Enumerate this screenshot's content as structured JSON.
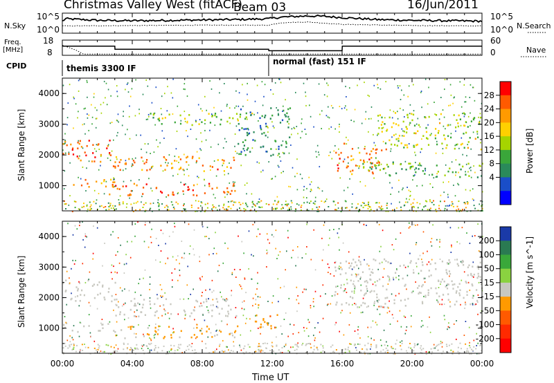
{
  "header": {
    "title": "Christmas Valley West (fitACF)",
    "beam": "Beam 03",
    "date": "16/Jun/2011"
  },
  "noise_panel": {
    "left_label": "N.Sky",
    "right_label": "N.Search",
    "ticks_left": [
      "10^5",
      "10^0"
    ],
    "ticks_right": [
      "10^5",
      "10^0"
    ]
  },
  "freq_panel": {
    "left_label_1": "Freq.",
    "left_label_2": "[MHz]",
    "right_label": "Nave",
    "ticks_left": [
      "18",
      "8"
    ],
    "ticks_right": [
      "60",
      "0"
    ]
  },
  "cpid": {
    "label": "CPID",
    "segments": [
      {
        "name": "themis 3300 IF",
        "start_hour": 0,
        "end_hour": 11.8
      },
      {
        "name": "normal (fast) 151 IF",
        "start_hour": 11.8,
        "end_hour": 24
      }
    ]
  },
  "power_panel": {
    "ylabel": "Slant Range [km]",
    "cbar_label": "Power [dB]",
    "cbar_ticks": [
      "28",
      "24",
      "20",
      "16",
      "12",
      "8",
      "4"
    ],
    "cbar_colors": [
      "#ff0000",
      "#ff5a00",
      "#ff9a00",
      "#ffd000",
      "#a6d400",
      "#3aa63a",
      "#2a8a5a",
      "#1a4ec8",
      "#0000ff"
    ]
  },
  "velocity_panel": {
    "ylabel": "Slant Range [km]",
    "cbar_label": "Velocity [m s^-1]",
    "cbar_ticks": [
      "200",
      "100",
      "50",
      "15",
      "-15",
      "-50",
      "-100",
      "-200"
    ],
    "cbar_colors": [
      "#1a3aa8",
      "#2a7a52",
      "#3aa83a",
      "#8ad240",
      "#c8c8c0",
      "#ff9a00",
      "#ff5a00",
      "#ff2a00",
      "#ff0000"
    ]
  },
  "x_axis": {
    "label": "Time UT",
    "ticks": [
      "00:00",
      "04:00",
      "08:00",
      "12:00",
      "16:00",
      "20:00",
      "00:00"
    ]
  },
  "y_axis": {
    "ticks": [
      "1000",
      "2000",
      "3000",
      "4000"
    ]
  },
  "chart_data": [
    {
      "type": "line",
      "title": "Noise",
      "series": [
        {
          "name": "N.Sky",
          "x": [
            0,
            0.2,
            2,
            4,
            6,
            8,
            10,
            11.8,
            12.5,
            14,
            15,
            16,
            18,
            20,
            22,
            24
          ],
          "y_log10": [
            3.0,
            3.6,
            3.2,
            3.1,
            3.2,
            3.3,
            3.4,
            3.6,
            4.0,
            4.3,
            4.2,
            3.9,
            3.4,
            3.2,
            3.1,
            3.0
          ]
        },
        {
          "name": "N.Search",
          "x": [
            0,
            4,
            8,
            11.8,
            12.5,
            14,
            16,
            20,
            24
          ],
          "y_log10": [
            1.8,
            1.9,
            2.0,
            2.0,
            2.6,
            2.8,
            2.2,
            1.9,
            1.8
          ]
        }
      ],
      "ylim": [
        "10^0",
        "10^5"
      ],
      "xlim": [
        0,
        24
      ]
    },
    {
      "type": "line",
      "title": "Frequency and Nave",
      "series": [
        {
          "name": "Freq. [MHz]",
          "x": [
            0,
            3,
            3.01,
            11.8,
            11.81,
            16,
            16.01,
            24
          ],
          "y": [
            14,
            14,
            12,
            12,
            11,
            11,
            14,
            14
          ]
        },
        {
          "name": "Nave",
          "x": [
            0,
            0.8,
            1.2,
            2,
            24
          ],
          "y": [
            40,
            20,
            5,
            5,
            5
          ]
        }
      ],
      "xlim": [
        0,
        24
      ]
    },
    {
      "type": "heatmap",
      "title": "Power [dB]",
      "xlabel": "Time UT",
      "ylabel": "Slant Range [km]",
      "xlim": [
        0,
        24
      ],
      "ylim": [
        180,
        4500
      ],
      "zlim": [
        0,
        30
      ],
      "features": [
        {
          "t0": 0,
          "t1": 3,
          "r0": 1800,
          "r1": 2500,
          "power": 26
        },
        {
          "t0": 0,
          "t1": 3,
          "r0": 950,
          "r1": 1250,
          "power": 22
        },
        {
          "t0": 2.8,
          "t1": 10,
          "r0": 1500,
          "r1": 2000,
          "power": 24
        },
        {
          "t0": 2.5,
          "t1": 10,
          "r0": 700,
          "r1": 1100,
          "power": 26
        },
        {
          "t0": 5,
          "t1": 11,
          "r0": 3000,
          "r1": 3400,
          "power": 14
        },
        {
          "t0": 10,
          "t1": 13,
          "r0": 2000,
          "r1": 3600,
          "power": 8
        },
        {
          "t0": 15.5,
          "t1": 18.5,
          "r0": 1400,
          "r1": 2400,
          "power": 24
        },
        {
          "t0": 18,
          "t1": 24,
          "r0": 2200,
          "r1": 3400,
          "power": 16
        },
        {
          "t0": 17,
          "t1": 24,
          "r0": 1300,
          "r1": 1800,
          "power": 12
        }
      ]
    },
    {
      "type": "heatmap",
      "title": "Velocity [m s^-1]",
      "xlabel": "Time UT",
      "ylabel": "Slant Range [km]",
      "xlim": [
        0,
        24
      ],
      "ylim": [
        180,
        4500
      ],
      "zlim": [
        -200,
        200
      ],
      "features": [
        {
          "t0": 0,
          "t1": 3,
          "r0": 1900,
          "r1": 2600,
          "velocity": 0
        },
        {
          "t0": 0,
          "t1": 3,
          "r0": 900,
          "r1": 1200,
          "velocity": 0
        },
        {
          "t0": 3,
          "t1": 10,
          "r0": 1400,
          "r1": 2000,
          "velocity": 0
        },
        {
          "t0": 3,
          "t1": 10,
          "r0": 700,
          "r1": 1100,
          "velocity": -30
        },
        {
          "t0": 11,
          "t1": 12.3,
          "r0": 1000,
          "r1": 1800,
          "velocity": -60
        },
        {
          "t0": 15.5,
          "t1": 24,
          "r0": 1700,
          "r1": 3300,
          "velocity": 0
        }
      ]
    }
  ]
}
